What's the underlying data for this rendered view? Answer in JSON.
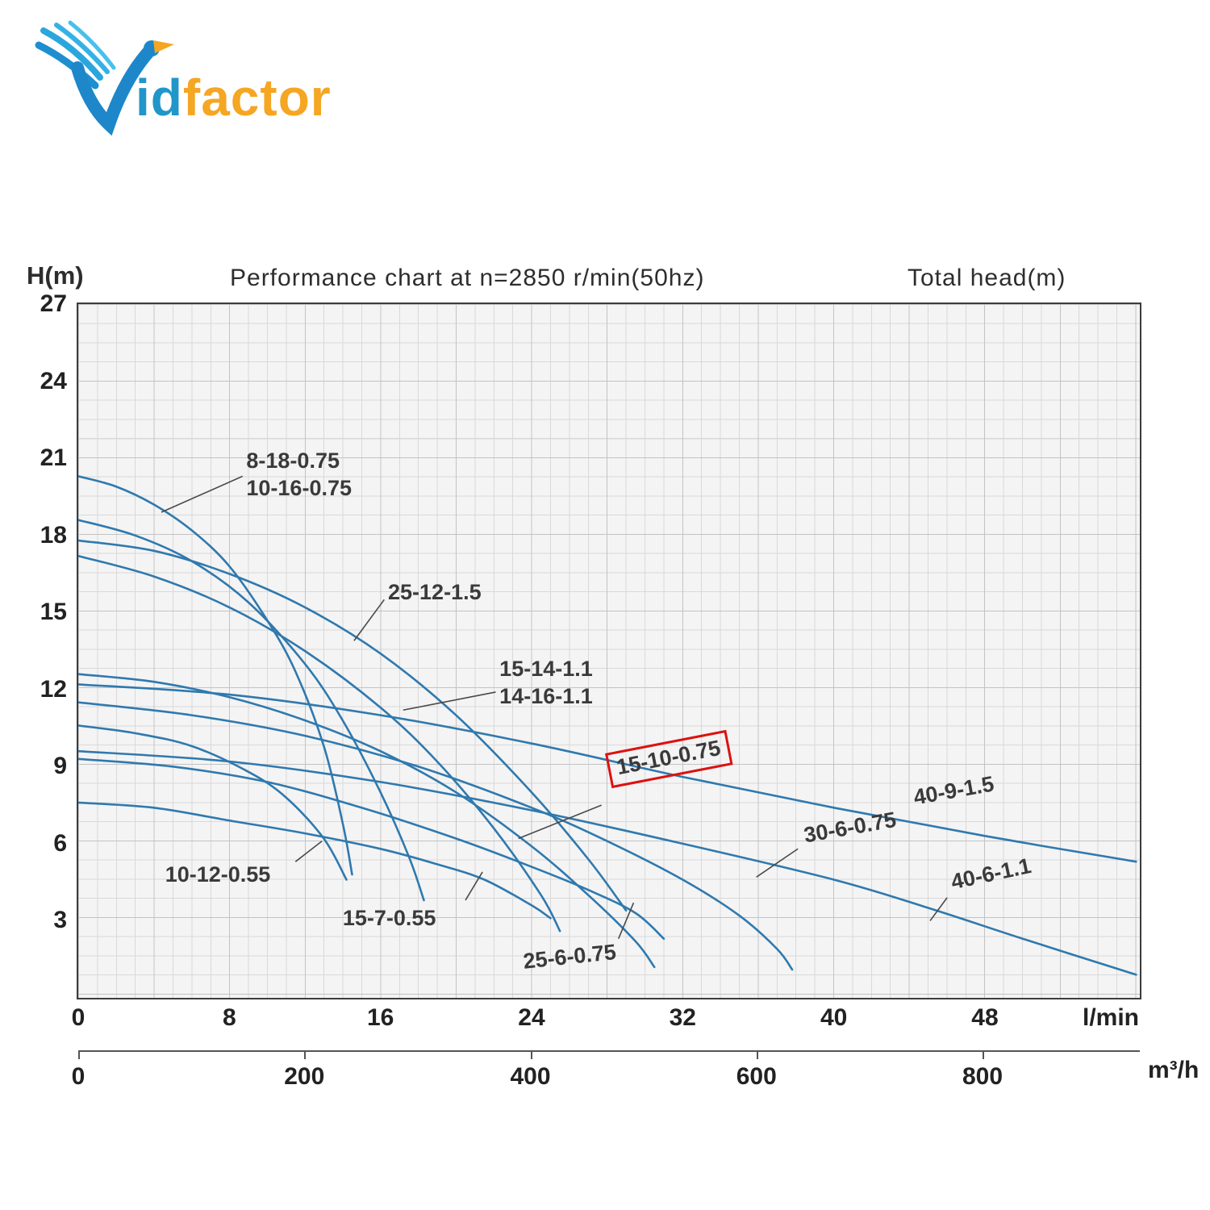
{
  "logo": {
    "text_blue": "id",
    "text_orange": "factor",
    "blue_color": "#2196c9",
    "orange_color": "#f5a623"
  },
  "chart_data": {
    "type": "line",
    "title": "Performance chart at n=2850 r/min(50hz)",
    "right_title": "Total head(m)",
    "y_axis_title": "H(m)",
    "x_unit": "l/min",
    "x2_unit": "m³/h",
    "xlim": [
      0,
      56.2
    ],
    "ylim": [
      0,
      27
    ],
    "x_ticks": [
      0,
      8,
      16,
      24,
      32,
      40,
      48
    ],
    "x2_ticks": [
      0,
      200,
      400,
      600,
      800
    ],
    "y_ticks": [
      27,
      24,
      21,
      18,
      15,
      12,
      9,
      6,
      3
    ],
    "grid": true,
    "line_color": "#2f79ae",
    "leader_color": "#4a4a4a",
    "highlight_box_color": "#dd1111",
    "series": [
      {
        "name": "8-18-0.75",
        "points": [
          [
            0,
            20.3
          ],
          [
            2,
            19.9
          ],
          [
            4,
            19.2
          ],
          [
            6,
            18.2
          ],
          [
            8,
            16.8
          ],
          [
            10,
            14.7
          ],
          [
            11.5,
            12.7
          ],
          [
            13,
            9.8
          ],
          [
            14,
            6.8
          ],
          [
            14.5,
            4.8
          ]
        ]
      },
      {
        "name": "10-16-0.75",
        "points": [
          [
            0,
            18.6
          ],
          [
            3,
            18.0
          ],
          [
            6,
            17.0
          ],
          [
            9,
            15.4
          ],
          [
            12,
            13.0
          ],
          [
            14,
            10.8
          ],
          [
            16,
            8.0
          ],
          [
            17.5,
            5.5
          ],
          [
            18.3,
            3.8
          ]
        ]
      },
      {
        "name": "25-12-1.5",
        "points": [
          [
            0,
            17.8
          ],
          [
            4,
            17.4
          ],
          [
            8,
            16.5
          ],
          [
            12,
            15.2
          ],
          [
            16,
            13.4
          ],
          [
            20,
            11.0
          ],
          [
            24,
            8.0
          ],
          [
            27,
            5.4
          ],
          [
            29,
            3.4
          ]
        ]
      },
      {
        "name": "15-14-1.1 / 14-16-1.1",
        "points": [
          [
            0,
            17.2
          ],
          [
            4,
            16.4
          ],
          [
            8,
            15.2
          ],
          [
            12,
            13.5
          ],
          [
            16,
            11.3
          ],
          [
            19,
            9.2
          ],
          [
            22,
            6.6
          ],
          [
            24.5,
            4.0
          ],
          [
            25.5,
            2.6
          ]
        ]
      },
      {
        "name": "15-10-0.75",
        "points": [
          [
            0,
            12.6
          ],
          [
            4,
            12.3
          ],
          [
            8,
            11.7
          ],
          [
            12,
            10.8
          ],
          [
            16,
            9.6
          ],
          [
            20,
            8.0
          ],
          [
            24,
            5.9
          ],
          [
            27,
            4.0
          ],
          [
            29.5,
            2.2
          ],
          [
            30.5,
            1.2
          ]
        ]
      },
      {
        "name": "40-9-1.5",
        "points": [
          [
            0,
            12.2
          ],
          [
            8,
            11.8
          ],
          [
            16,
            11.0
          ],
          [
            24,
            9.9
          ],
          [
            32,
            8.6
          ],
          [
            40,
            7.4
          ],
          [
            48,
            6.3
          ],
          [
            56,
            5.3
          ]
        ]
      },
      {
        "name": "30-6-0.75",
        "points": [
          [
            0,
            11.5
          ],
          [
            6,
            11.0
          ],
          [
            12,
            10.2
          ],
          [
            18,
            9.0
          ],
          [
            24,
            7.4
          ],
          [
            28,
            6.1
          ],
          [
            32,
            4.6
          ],
          [
            35,
            3.2
          ],
          [
            37,
            1.9
          ],
          [
            37.8,
            1.1
          ]
        ]
      },
      {
        "name": "40-6-1.1",
        "points": [
          [
            0,
            9.6
          ],
          [
            8,
            9.2
          ],
          [
            16,
            8.4
          ],
          [
            24,
            7.3
          ],
          [
            32,
            6.0
          ],
          [
            40,
            4.6
          ],
          [
            45,
            3.5
          ],
          [
            50,
            2.3
          ],
          [
            56,
            0.9
          ]
        ]
      },
      {
        "name": "10-12-0.55",
        "points": [
          [
            0,
            10.6
          ],
          [
            3,
            10.3
          ],
          [
            6,
            9.8
          ],
          [
            9,
            8.8
          ],
          [
            11,
            7.8
          ],
          [
            13,
            6.2
          ],
          [
            14.2,
            4.6
          ]
        ]
      },
      {
        "name": "15-7-0.55",
        "points": [
          [
            0,
            7.6
          ],
          [
            4,
            7.4
          ],
          [
            8,
            6.9
          ],
          [
            12,
            6.4
          ],
          [
            16,
            5.8
          ],
          [
            19,
            5.2
          ],
          [
            21.5,
            4.6
          ],
          [
            24,
            3.6
          ],
          [
            25,
            3.1
          ]
        ]
      },
      {
        "name": "25-6-0.75",
        "points": [
          [
            0,
            9.3
          ],
          [
            5,
            9.0
          ],
          [
            10,
            8.4
          ],
          [
            15,
            7.4
          ],
          [
            20,
            6.2
          ],
          [
            24,
            5.1
          ],
          [
            27,
            4.2
          ],
          [
            29.5,
            3.3
          ],
          [
            31,
            2.3
          ]
        ]
      }
    ],
    "labels": [
      {
        "lines": [
          "8-18-0.75",
          "10-16-0.75"
        ],
        "x": 8.9,
        "y": 21.4,
        "rotate": 0,
        "highlight": false,
        "leader": [
          8.7,
          20.3,
          4.4,
          18.9
        ]
      },
      {
        "lines": [
          "25-12-1.5"
        ],
        "x": 16.4,
        "y": 16.3,
        "rotate": 0,
        "highlight": false,
        "leader": [
          16.2,
          15.5,
          14.6,
          13.9
        ]
      },
      {
        "lines": [
          "15-14-1.1",
          "14-16-1.1"
        ],
        "x": 22.3,
        "y": 13.3,
        "rotate": 0,
        "highlight": false,
        "leader": [
          22.1,
          11.9,
          17.2,
          11.2
        ]
      },
      {
        "lines": [
          "15-10-0.75"
        ],
        "x": 27.9,
        "y": 9.5,
        "rotate": -11,
        "highlight": true,
        "leader": [
          27.7,
          7.5,
          23.3,
          6.2
        ]
      },
      {
        "lines": [
          "40-9-1.5"
        ],
        "x": 44.1,
        "y": 8.3,
        "rotate": -10,
        "highlight": false,
        "leader": null
      },
      {
        "lines": [
          "30-6-0.75"
        ],
        "x": 38.3,
        "y": 6.8,
        "rotate": -10,
        "highlight": false,
        "leader": [
          38.1,
          5.8,
          35.9,
          4.7
        ]
      },
      {
        "lines": [
          "40-6-1.1"
        ],
        "x": 46.1,
        "y": 5.0,
        "rotate": -12,
        "highlight": false,
        "leader": [
          46.0,
          3.9,
          45.1,
          3.0
        ]
      },
      {
        "lines": [
          "10-12-0.55"
        ],
        "x": 4.6,
        "y": 5.3,
        "rotate": 0,
        "highlight": false,
        "leader": [
          11.5,
          5.3,
          12.9,
          6.1
        ]
      },
      {
        "lines": [
          "15-7-0.55"
        ],
        "x": 14.0,
        "y": 3.6,
        "rotate": 0,
        "highlight": false,
        "leader": [
          20.5,
          3.8,
          21.4,
          4.9
        ]
      },
      {
        "lines": [
          "25-6-0.75"
        ],
        "x": 23.5,
        "y": 1.9,
        "rotate": -6,
        "highlight": false,
        "leader": [
          28.6,
          2.3,
          29.4,
          3.7
        ]
      }
    ]
  }
}
